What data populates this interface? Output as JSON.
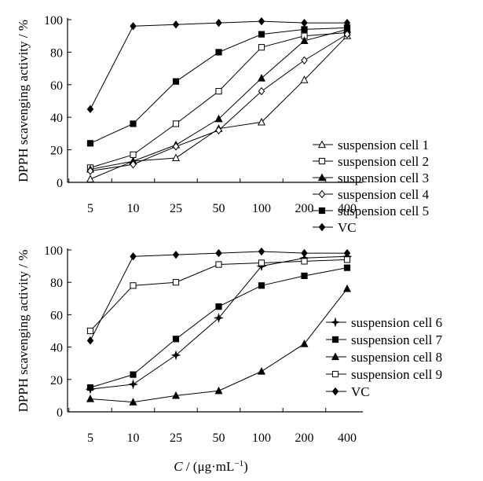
{
  "chart_data": [
    {
      "type": "line",
      "ylabel": "DPPH scavenging activity / %",
      "xlabel": "",
      "categories": [
        "5",
        "10",
        "25",
        "50",
        "100",
        "200",
        "400"
      ],
      "yticks": [
        0,
        20,
        40,
        60,
        80,
        100
      ],
      "ylim": [
        0,
        100
      ],
      "grid": false,
      "legend_position": "right",
      "series": [
        {
          "name": "suspension cell 1",
          "marker": "open-triangle",
          "values": [
            2,
            13,
            15,
            33,
            37,
            63,
            90
          ]
        },
        {
          "name": "suspension cell 2",
          "marker": "open-square",
          "values": [
            9,
            17,
            36,
            56,
            83,
            90,
            92
          ]
        },
        {
          "name": "suspension cell 3",
          "marker": "filled-triangle",
          "values": [
            8,
            13,
            23,
            39,
            64,
            87,
            94
          ]
        },
        {
          "name": "suspension cell 4",
          "marker": "open-diamond",
          "values": [
            7,
            11,
            22,
            32,
            56,
            75,
            91
          ]
        },
        {
          "name": "suspension cell 5",
          "marker": "filled-square",
          "values": [
            24,
            36,
            62,
            80,
            91,
            94,
            95
          ]
        },
        {
          "name": "VC",
          "marker": "filled-diamond",
          "values": [
            45,
            96,
            97,
            98,
            99,
            98,
            98
          ]
        }
      ]
    },
    {
      "type": "line",
      "ylabel": "DPPH scavenging activity / %",
      "xlabel": "C / (μg·mL⁻¹)",
      "categories": [
        "5",
        "10",
        "25",
        "50",
        "100",
        "200",
        "400"
      ],
      "yticks": [
        0,
        20,
        40,
        60,
        80,
        100
      ],
      "ylim": [
        0,
        100
      ],
      "grid": false,
      "legend_position": "right",
      "series": [
        {
          "name": "suspension cell 6",
          "marker": "filled-star",
          "values": [
            14,
            17,
            35,
            58,
            90,
            95,
            96
          ]
        },
        {
          "name": "suspension cell 7",
          "marker": "filled-square",
          "values": [
            15,
            23,
            45,
            65,
            78,
            84,
            89
          ]
        },
        {
          "name": "suspension cell 8",
          "marker": "filled-triangle",
          "values": [
            8,
            6,
            10,
            13,
            25,
            42,
            76
          ]
        },
        {
          "name": "suspension cell 9",
          "marker": "open-square",
          "values": [
            50,
            78,
            80,
            91,
            92,
            93,
            94
          ]
        },
        {
          "name": "VC",
          "marker": "filled-diamond",
          "values": [
            44,
            96,
            97,
            98,
            99,
            98,
            98
          ]
        }
      ]
    }
  ]
}
